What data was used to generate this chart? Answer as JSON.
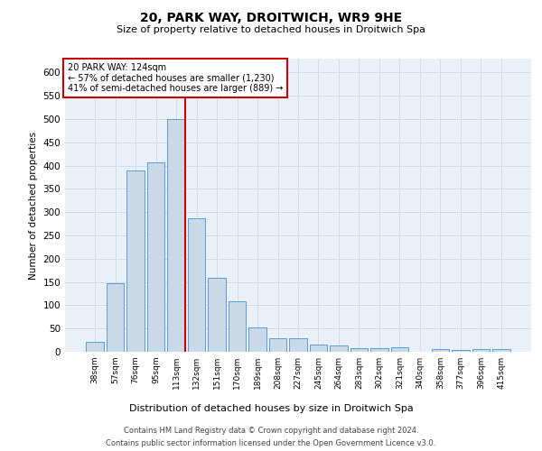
{
  "title": "20, PARK WAY, DROITWICH, WR9 9HE",
  "subtitle": "Size of property relative to detached houses in Droitwich Spa",
  "xlabel": "Distribution of detached houses by size in Droitwich Spa",
  "ylabel": "Number of detached properties",
  "footer_line1": "Contains HM Land Registry data © Crown copyright and database right 2024.",
  "footer_line2": "Contains public sector information licensed under the Open Government Licence v3.0.",
  "bar_labels": [
    "38sqm",
    "57sqm",
    "76sqm",
    "95sqm",
    "113sqm",
    "132sqm",
    "151sqm",
    "170sqm",
    "189sqm",
    "208sqm",
    "227sqm",
    "245sqm",
    "264sqm",
    "283sqm",
    "302sqm",
    "321sqm",
    "340sqm",
    "358sqm",
    "377sqm",
    "396sqm",
    "415sqm"
  ],
  "bar_values": [
    22,
    148,
    390,
    408,
    500,
    287,
    158,
    108,
    52,
    30,
    30,
    15,
    13,
    7,
    8,
    10,
    0,
    5,
    3,
    5,
    5
  ],
  "bar_color": "#c9d9e8",
  "bar_edge_color": "#5b9bd5",
  "ylim": [
    0,
    630
  ],
  "yticks": [
    0,
    50,
    100,
    150,
    200,
    250,
    300,
    350,
    400,
    450,
    500,
    550,
    600
  ],
  "property_label": "20 PARK WAY: 124sqm",
  "annotation_line1": "← 57% of detached houses are smaller (1,230)",
  "annotation_line2": "41% of semi-detached houses are larger (889) →",
  "red_line_color": "#cc0000",
  "annotation_box_color": "#ffffff",
  "annotation_box_edge": "#cc0000",
  "grid_color": "#d0dce8",
  "background_color": "#eaf0f8"
}
